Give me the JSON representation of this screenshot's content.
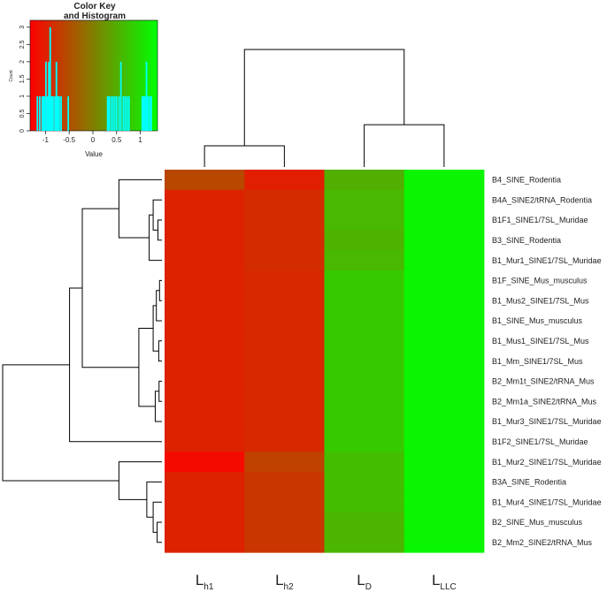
{
  "chart_data": {
    "type": "heatmap",
    "color_key": {
      "title_line1": "Color Key",
      "title_line2": "and Histogram",
      "xlabel": "Value",
      "ylabel": "Count",
      "x_ticks": [
        "-1",
        "-0.5",
        "0",
        "0.5",
        "1"
      ],
      "x_tick_values": [
        -1,
        -0.5,
        0,
        0.5,
        1
      ],
      "y_ticks": [
        "0",
        "0.5",
        "1",
        "1.5",
        "2",
        "2.5",
        "3"
      ],
      "y_tick_values": [
        0,
        0.5,
        1,
        1.5,
        2,
        2.5,
        3
      ],
      "xlim": [
        -1.25,
        1.25
      ],
      "ylim": [
        0,
        3.2
      ],
      "low_color": "#ff0000",
      "mid_color": "#808000",
      "high_color": "#00ff00",
      "histogram_color": "#00ffff",
      "histogram_bins": [
        {
          "x": -1.17,
          "count": 1
        },
        {
          "x": -1.12,
          "count": 1
        },
        {
          "x": -1.07,
          "count": 1
        },
        {
          "x": -1.04,
          "count": 1
        },
        {
          "x": -1.02,
          "count": 1
        },
        {
          "x": -0.99,
          "count": 2
        },
        {
          "x": -0.96,
          "count": 1
        },
        {
          "x": -0.93,
          "count": 2
        },
        {
          "x": -0.9,
          "count": 3
        },
        {
          "x": -0.88,
          "count": 1
        },
        {
          "x": -0.86,
          "count": 1
        },
        {
          "x": -0.84,
          "count": 1
        },
        {
          "x": -0.8,
          "count": 1
        },
        {
          "x": -0.77,
          "count": 2
        },
        {
          "x": -0.74,
          "count": 1
        },
        {
          "x": -0.71,
          "count": 1
        },
        {
          "x": -0.67,
          "count": 1
        },
        {
          "x": -0.52,
          "count": 1
        },
        {
          "x": 0.31,
          "count": 1
        },
        {
          "x": 0.34,
          "count": 1
        },
        {
          "x": 0.38,
          "count": 1
        },
        {
          "x": 0.42,
          "count": 1
        },
        {
          "x": 0.46,
          "count": 1
        },
        {
          "x": 0.5,
          "count": 1
        },
        {
          "x": 0.55,
          "count": 1
        },
        {
          "x": 0.59,
          "count": 2
        },
        {
          "x": 0.64,
          "count": 1
        },
        {
          "x": 0.68,
          "count": 1
        },
        {
          "x": 0.72,
          "count": 1
        },
        {
          "x": 0.76,
          "count": 1
        },
        {
          "x": 1.04,
          "count": 1
        },
        {
          "x": 1.07,
          "count": 1
        },
        {
          "x": 1.1,
          "count": 1
        },
        {
          "x": 1.13,
          "count": 2
        },
        {
          "x": 1.16,
          "count": 1
        },
        {
          "x": 1.2,
          "count": 1
        },
        {
          "x": 1.23,
          "count": 1
        }
      ]
    },
    "columns": [
      {
        "main": "L",
        "sub": "h1"
      },
      {
        "main": "L",
        "sub": "h2"
      },
      {
        "main": "L",
        "sub": "D"
      },
      {
        "main": "L",
        "sub": "LLC"
      }
    ],
    "rows": [
      "B4_SINE_Rodentia",
      "B4A_SINE2/tRNA_Rodentia",
      "B1F1_SINE1/7SL_Muridae",
      "B3_SINE_Rodentia",
      "B1_Mur1_SINE1/7SL_Muridae",
      "B1F_SINE_Mus_musculus",
      "B1_Mus2_SINE1/7SL_Mus",
      "B1_SINE_Mus_musculus",
      "B1_Mus1_SINE1/7SL_Mus",
      "B1_Mm_SINE1/7SL_Mus",
      "B2_Mm1t_SINE2/tRNA_Mus",
      "B2_Mm1a_SINE2/tRNA_Mus",
      "B1_Mur3_SINE1/7SL_Muridae",
      "B1F2_SINE1/7SL_Muridae",
      "B1_Mur2_SINE1/7SL_Muridae",
      "B3A_SINE_Rodentia",
      "B1_Mur4_SINE1/7SL_Muridae",
      "B2_SINE_Mus_musculus",
      "B2_Mm2_SINE2/tRNA_Mus"
    ],
    "values": [
      [
        -0.55,
        -0.95,
        0.45,
        1.15
      ],
      [
        -0.92,
        -0.82,
        0.55,
        1.15
      ],
      [
        -0.92,
        -0.82,
        0.55,
        1.15
      ],
      [
        -0.92,
        -0.82,
        0.5,
        1.15
      ],
      [
        -0.92,
        -0.82,
        0.55,
        1.15
      ],
      [
        -0.92,
        -0.86,
        0.72,
        1.15
      ],
      [
        -0.92,
        -0.86,
        0.72,
        1.15
      ],
      [
        -0.92,
        -0.86,
        0.72,
        1.15
      ],
      [
        -0.92,
        -0.86,
        0.72,
        1.15
      ],
      [
        -0.92,
        -0.86,
        0.72,
        1.15
      ],
      [
        -0.92,
        -0.86,
        0.72,
        1.15
      ],
      [
        -0.92,
        -0.86,
        0.72,
        1.15
      ],
      [
        -0.92,
        -0.86,
        0.72,
        1.15
      ],
      [
        -0.92,
        -0.86,
        0.72,
        1.15
      ],
      [
        -1.15,
        -0.62,
        0.6,
        1.15
      ],
      [
        -0.92,
        -0.72,
        0.6,
        1.15
      ],
      [
        -0.92,
        -0.72,
        0.6,
        1.15
      ],
      [
        -0.92,
        -0.72,
        0.52,
        1.15
      ],
      [
        -0.92,
        -0.72,
        0.52,
        1.15
      ]
    ],
    "row_dendrogram_heights": {
      "max": 10
    },
    "row_dendrogram": {
      "root": {
        "h": 10,
        "left": "A",
        "right": "B"
      },
      "A": {
        "h": 5.8,
        "left": "A1",
        "right": "A2"
      },
      "A1": {
        "h": 5.0,
        "left": "A1a",
        "right": "A1b"
      },
      "A1a": {
        "h": 2.7,
        "left": 0,
        "right": "A1a2"
      },
      "A1a2": {
        "h": 0.8,
        "left": "A1a2a",
        "right": 4
      },
      "A1a2a": {
        "h": 0.55,
        "left": 1,
        "right": "A1a2a2"
      },
      "A1a2a2": {
        "h": 0.25,
        "left": 2,
        "right": 3
      },
      "A1b": {
        "h": 1.45,
        "left": "A1b1",
        "right": "A1b2"
      },
      "A1b1": {
        "h": 0.55,
        "left": "A1b1a",
        "right": "A1b1b"
      },
      "A1b1a": {
        "h": 0.35,
        "left": "A1b1a1",
        "right": 7
      },
      "A1b1a1": {
        "h": 0.15,
        "left": 5,
        "right": 6
      },
      "A1b1b": {
        "h": 0.2,
        "left": 8,
        "right": 9
      },
      "A1b2": {
        "h": 0.42,
        "left": "A1b2a",
        "right": 12
      },
      "A1b2a": {
        "h": 0.18,
        "left": 10,
        "right": 11
      },
      "A2": {
        "h": 0,
        "left": 13,
        "right": 13
      },
      "B": {
        "h": 2.7,
        "left": 14,
        "right": "B2"
      },
      "B2": {
        "h": 0.95,
        "left": 15,
        "right": "B2b"
      },
      "B2b": {
        "h": 0.55,
        "left": 16,
        "right": "B2b2"
      },
      "B2b2": {
        "h": 0.3,
        "left": 17,
        "right": 18
      }
    },
    "col_dendrogram": {
      "root": {
        "h": 1.0,
        "left": "C1",
        "right": "C2"
      },
      "C1": {
        "h": 0.18,
        "left": 0,
        "right": 1
      },
      "C2": {
        "h": 0.36,
        "left": 2,
        "right": 3
      }
    }
  }
}
